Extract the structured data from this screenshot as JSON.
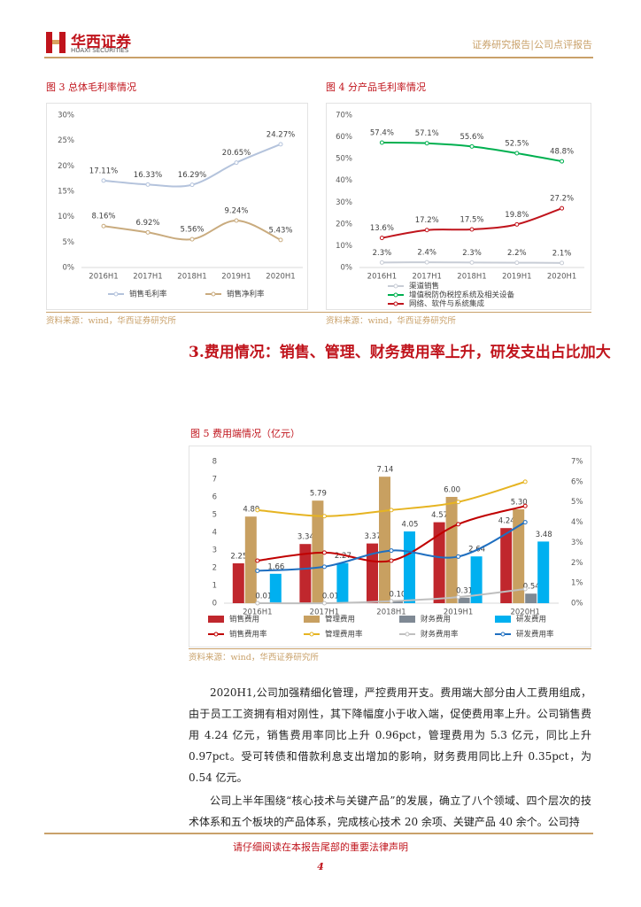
{
  "header": {
    "logo_cn": "华西证券",
    "logo_en": "HUAXI SECURITIES",
    "right": "证券研究报告|公司点评报告"
  },
  "figures": [
    {
      "caption": "图 3 总体毛利率情况",
      "source": "资料来源：wind，华西证券研究所",
      "chart_data": {
        "type": "line",
        "categories": [
          "2016H1",
          "2017H1",
          "2018H1",
          "2019H1",
          "2020H1"
        ],
        "ylim": [
          0,
          30
        ],
        "yticks": [
          {
            "value": 0,
            "label": "0%"
          },
          {
            "value": 5,
            "label": "5%"
          },
          {
            "value": 10,
            "label": "10%"
          },
          {
            "value": 15,
            "label": "15%"
          },
          {
            "value": 20,
            "label": "20%"
          },
          {
            "value": 25,
            "label": "25%"
          },
          {
            "value": 30,
            "label": "30%"
          }
        ],
        "series": [
          {
            "name": "销售毛利率",
            "color": "#b4c3dc",
            "values": [
              17.11,
              16.33,
              16.29,
              20.65,
              24.27
            ],
            "value_labels": [
              "17.11%",
              "16.33%",
              "16.29%",
              "20.65%",
              "24.27%"
            ]
          },
          {
            "name": "销售净利率",
            "color": "#c9ab7e",
            "values": [
              8.16,
              6.92,
              5.56,
              9.24,
              5.43
            ],
            "value_labels": [
              "8.16%",
              "6.92%",
              "5.56%",
              "9.24%",
              "5.43%"
            ]
          }
        ]
      }
    },
    {
      "caption": "图 4 分产品毛利率情况",
      "source": "资料来源：wind，华西证券研究所",
      "chart_data": {
        "type": "line",
        "categories": [
          "2016H1",
          "2017H1",
          "2018H1",
          "2019H1",
          "2020H1"
        ],
        "ylim": [
          0,
          70
        ],
        "yticks": [
          {
            "value": 0,
            "label": "0%"
          },
          {
            "value": 10,
            "label": "10%"
          },
          {
            "value": 20,
            "label": "20%"
          },
          {
            "value": 30,
            "label": "30%"
          },
          {
            "value": 40,
            "label": "40%"
          },
          {
            "value": 50,
            "label": "50%"
          },
          {
            "value": 60,
            "label": "60%"
          },
          {
            "value": 70,
            "label": "70%"
          }
        ],
        "series": [
          {
            "name": "渠道销售",
            "color": "#c8cdd6",
            "values": [
              2.3,
              2.4,
              2.3,
              2.2,
              2.1
            ],
            "value_labels": [
              "2.3%",
              "2.4%",
              "2.3%",
              "2.2%",
              "2.1%"
            ]
          },
          {
            "name": "增值税防伪税控系统及相关设备",
            "color": "#00b050",
            "values": [
              57.4,
              57.1,
              55.6,
              52.5,
              48.8
            ],
            "value_labels": [
              "57.4%",
              "57.1%",
              "55.6%",
              "52.5%",
              "48.8%"
            ]
          },
          {
            "name": "网络、软件与系统集成",
            "color": "#c0141c",
            "values": [
              13.6,
              17.2,
              17.5,
              19.8,
              27.2
            ],
            "value_labels": [
              "13.6%",
              "17.2%",
              "17.5%",
              "19.8%",
              "27.2%"
            ]
          }
        ]
      }
    },
    {
      "caption": "图 5 费用端情况（亿元）",
      "source": "资料来源：wind，华西证券研究所",
      "chart_data": {
        "type": "bar",
        "categories": [
          "2016H1",
          "2017H1",
          "2018H1",
          "2019H1",
          "2020H1"
        ],
        "ylim": [
          0,
          8
        ],
        "yticks": [
          0,
          1,
          2,
          3,
          4,
          5,
          6,
          7,
          8
        ],
        "y2lim": [
          0,
          7
        ],
        "y2ticks": [
          {
            "value": 0,
            "label": "0%"
          },
          {
            "value": 1,
            "label": "1%"
          },
          {
            "value": 2,
            "label": "2%"
          },
          {
            "value": 3,
            "label": "3%"
          },
          {
            "value": 4,
            "label": "4%"
          },
          {
            "value": 5,
            "label": "5%"
          },
          {
            "value": 6,
            "label": "6%"
          },
          {
            "value": 7,
            "label": "7%"
          }
        ],
        "series": [
          {
            "name": "销售费用",
            "color": "#c0272d",
            "values": [
              2.25,
              3.34,
              3.37,
              4.57,
              4.24
            ]
          },
          {
            "name": "管理费用",
            "color": "#c8a061",
            "values": [
              4.89,
              5.79,
              7.14,
              6.0,
              5.3
            ],
            "value_labels": [
              "4.89",
              "5.79",
              "7.14",
              "6.00",
              "5.30"
            ]
          },
          {
            "name": "财务费用",
            "color": "#7f8994",
            "values": [
              0.01,
              0.01,
              0.1,
              0.31,
              0.54
            ],
            "value_labels": [
              "0.01",
              "0.01",
              "0.10",
              "0.31",
              "0.54"
            ]
          },
          {
            "name": "研发费用",
            "color": "#00b0f0",
            "values": [
              1.66,
              2.27,
              4.05,
              2.64,
              3.48
            ]
          },
          {
            "name": "销售费用率",
            "type": "line",
            "axis": "y2",
            "color": "#c00000",
            "values": [
              2.1,
              2.5,
              2.1,
              3.9,
              4.8
            ]
          },
          {
            "name": "管理费用率",
            "type": "line",
            "axis": "y2",
            "color": "#e6b422",
            "values": [
              4.6,
              4.3,
              4.6,
              5.0,
              6.0
            ]
          },
          {
            "name": "财务费用率",
            "type": "line",
            "axis": "y2",
            "color": "#bfbfbf",
            "values": [
              0.0,
              0.0,
              0.1,
              0.3,
              0.7
            ]
          },
          {
            "name": "研发费用率",
            "type": "line",
            "axis": "y2",
            "color": "#1f6fc0",
            "values": [
              1.6,
              1.8,
              2.6,
              2.3,
              4.0
            ]
          }
        ]
      }
    }
  ],
  "section_title": "3.费用情况：销售、管理、财务费用率上升，研发支出占比加大",
  "paragraphs": [
    "2020H1,公司加强精细化管理，严控费用开支。费用端大部分由人工费用组成，由于员工工资拥有相对刚性，其下降幅度小于收入端，促使费用率上升。公司销售费用 4.24 亿元，销售费用率同比上升 0.96pct，管理费用为 5.3 亿元，同比上升 0.97pct。受可转债和借款利息支出增加的影响，财务费用同比上升 0.35pct，为 0.54 亿元。",
    "公司上半年围绕“核心技术与关键产品”的发展，确立了八个领域、四个层次的技术体系和五个板块的产品体系，完成核心技术 20 余项、关键产品 40 余个。公司持"
  ],
  "footer": {
    "disclaimer": "请仔细阅读在本报告尾部的重要法律声明",
    "page": "4"
  }
}
